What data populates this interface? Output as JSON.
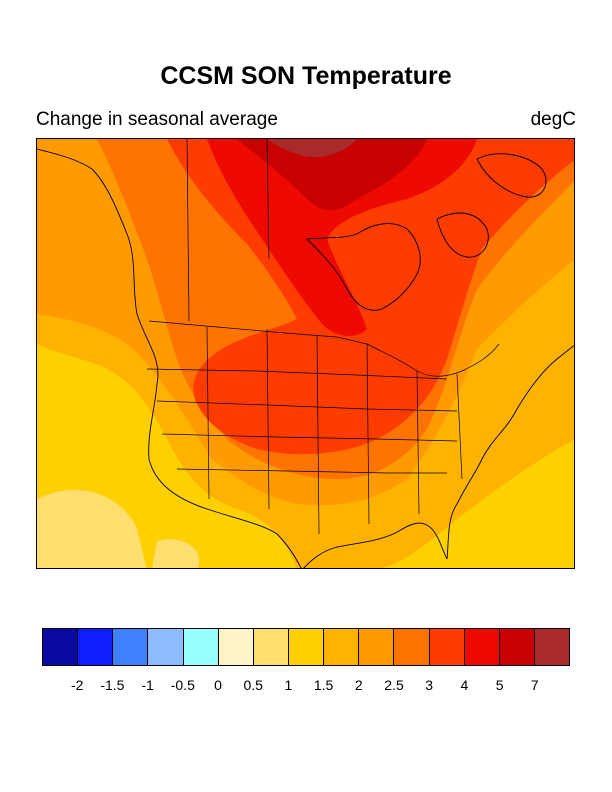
{
  "title": "CCSM SON Temperature",
  "subtitle_left": "Change in seasonal average",
  "subtitle_right": "degC",
  "map": {
    "name": "North America temperature change contour map",
    "region": "North America",
    "icon": "map-contour"
  },
  "legend": {
    "colors": [
      "#0b0aa0",
      "#0d1eff",
      "#3f80ff",
      "#8cbcff",
      "#99ffff",
      "#fff3c8",
      "#ffde70",
      "#ffd000",
      "#ffb300",
      "#ff9a00",
      "#ff7300",
      "#ff3c00",
      "#ee0a00",
      "#c80000",
      "#a82a2a"
    ],
    "labels": [
      "-2",
      "-1.5",
      "-1",
      "-0.5",
      "0",
      "0.5",
      "1",
      "1.5",
      "2",
      "2.5",
      "3",
      "4",
      "5",
      "7"
    ]
  }
}
